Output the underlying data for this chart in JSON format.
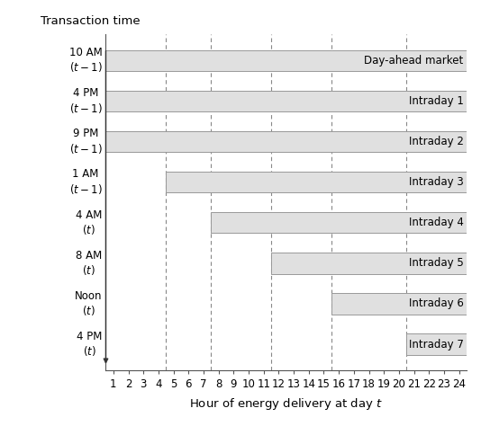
{
  "title": "Transaction time",
  "xlabel": "Hour of energy delivery at day $t$",
  "bars": [
    {
      "label": "Day-ahead market",
      "start": 1,
      "end": 24,
      "y": 7
    },
    {
      "label": "Intraday 1",
      "start": 1,
      "end": 24,
      "y": 6
    },
    {
      "label": "Intraday 2",
      "start": 1,
      "end": 24,
      "y": 5
    },
    {
      "label": "Intraday 3",
      "start": 5,
      "end": 24,
      "y": 4
    },
    {
      "label": "Intraday 4",
      "start": 8,
      "end": 24,
      "y": 3
    },
    {
      "label": "Intraday 5",
      "start": 12,
      "end": 24,
      "y": 2
    },
    {
      "label": "Intraday 6",
      "start": 16,
      "end": 24,
      "y": 1
    },
    {
      "label": "Intraday 7",
      "start": 21,
      "end": 24,
      "y": 0
    }
  ],
  "ytick_labels": [
    [
      "10 ",
      "am",
      "\n$(t-1)$"
    ],
    [
      "4 ",
      "pm",
      "\n$(t-1)$"
    ],
    [
      "9 ",
      "pm",
      "\n$(t-1)$"
    ],
    [
      "1 ",
      "am",
      "\n$(t-1)$"
    ],
    [
      "4 ",
      "am",
      "\n$(t)$"
    ],
    [
      "8 ",
      "am",
      "\n$(t)$"
    ],
    [
      "Noon",
      "",
      "\n$(t)$"
    ],
    [
      "4 ",
      "pm",
      "\n$(t)$"
    ]
  ],
  "dashed_lines": [
    5,
    8,
    12,
    16,
    21
  ],
  "bar_color": "#e0e0e0",
  "bar_edge_color": "#999999",
  "bar_height": 0.52,
  "xlim_min": 0.5,
  "xlim_max": 24.5,
  "xticks": [
    1,
    2,
    3,
    4,
    5,
    6,
    7,
    8,
    9,
    10,
    11,
    12,
    13,
    14,
    15,
    16,
    17,
    18,
    19,
    20,
    21,
    22,
    23,
    24
  ],
  "arrow_color": "#333333",
  "label_fontsize": 8.5,
  "tick_fontsize": 8.5,
  "ytick_fontsize": 8.5
}
